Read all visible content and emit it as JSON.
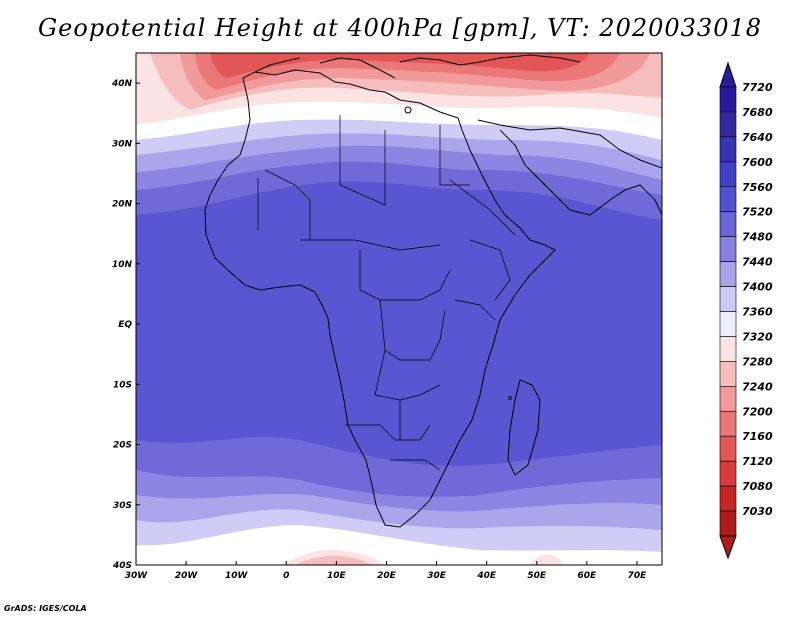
{
  "title": "Geopotential Height at 400hPa [gpm], VT: 2020033018",
  "credit": "GrADS: IGES/COLA",
  "map": {
    "lon_range": [
      -30,
      75
    ],
    "lat_range": [
      -40,
      45
    ],
    "x_ticks": [
      {
        "lon": -30,
        "label": "30W"
      },
      {
        "lon": -20,
        "label": "20W"
      },
      {
        "lon": -10,
        "label": "10W"
      },
      {
        "lon": 0,
        "label": "0"
      },
      {
        "lon": 10,
        "label": "10E"
      },
      {
        "lon": 20,
        "label": "20E"
      },
      {
        "lon": 30,
        "label": "30E"
      },
      {
        "lon": 40,
        "label": "40E"
      },
      {
        "lon": 50,
        "label": "50E"
      },
      {
        "lon": 60,
        "label": "60E"
      },
      {
        "lon": 70,
        "label": "70E"
      }
    ],
    "y_ticks": [
      {
        "lat": 40,
        "label": "40N"
      },
      {
        "lat": 30,
        "label": "30N"
      },
      {
        "lat": 20,
        "label": "20N"
      },
      {
        "lat": 10,
        "label": "10N"
      },
      {
        "lat": 0,
        "label": "EQ"
      },
      {
        "lat": -10,
        "label": "10S"
      },
      {
        "lat": -20,
        "label": "20S"
      },
      {
        "lat": -30,
        "label": "30S"
      },
      {
        "lat": -40,
        "label": "40S"
      }
    ]
  },
  "colorbar": {
    "levels": [
      "7720",
      "7680",
      "7640",
      "7600",
      "7560",
      "7520",
      "7480",
      "7440",
      "7400",
      "7360",
      "7320",
      "7280",
      "7240",
      "7200",
      "7160",
      "7120",
      "7080",
      "7030"
    ],
    "colors": [
      "#2a1a9c",
      "#33299f",
      "#3a34b4",
      "#4141c8",
      "#5351cf",
      "#6a65d6",
      "#8681df",
      "#a8a4ea",
      "#ccc9f4",
      "#ececfb",
      "#fbe3e3",
      "#f6bdbd",
      "#f19a9a",
      "#ea7878",
      "#e25656",
      "#d73b3b",
      "#c52727",
      "#b01b1b"
    ]
  }
}
